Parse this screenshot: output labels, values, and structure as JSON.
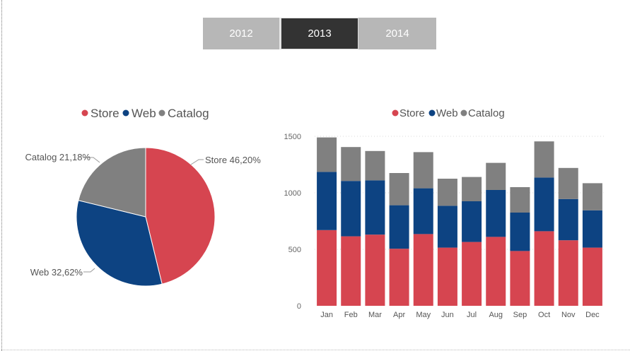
{
  "slicer": {
    "years": [
      "2012",
      "2013",
      "2014"
    ],
    "selected": "2013"
  },
  "legend": {
    "items": [
      {
        "label": "Store",
        "color": "#d64550"
      },
      {
        "label": "Web",
        "color": "#0d4382"
      },
      {
        "label": "Catalog",
        "color": "#808080"
      }
    ]
  },
  "chart_data": [
    {
      "type": "pie",
      "slices": [
        {
          "name": "Store",
          "value": 46.2,
          "label": "Store 46,20%",
          "color": "#d64550"
        },
        {
          "name": "Web",
          "value": 32.62,
          "label": "Web 32,62%",
          "color": "#0d4382"
        },
        {
          "name": "Catalog",
          "value": 21.18,
          "label": "Catalog 21,18%",
          "color": "#808080"
        }
      ]
    },
    {
      "type": "bar",
      "stacked": true,
      "categories": [
        "Jan",
        "Feb",
        "Mar",
        "Apr",
        "May",
        "Jun",
        "Jul",
        "Aug",
        "Sep",
        "Oct",
        "Nov",
        "Dec"
      ],
      "series": [
        {
          "name": "Store",
          "color": "#d64550",
          "values": [
            670,
            615,
            630,
            505,
            635,
            515,
            565,
            610,
            485,
            660,
            580,
            515
          ]
        },
        {
          "name": "Web",
          "color": "#0d4382",
          "values": [
            515,
            490,
            480,
            385,
            405,
            370,
            360,
            415,
            340,
            475,
            365,
            330
          ]
        },
        {
          "name": "Catalog",
          "color": "#808080",
          "values": [
            305,
            300,
            260,
            285,
            320,
            240,
            215,
            240,
            225,
            320,
            275,
            240
          ]
        }
      ],
      "ylim": [
        0,
        1500
      ],
      "yticks": [
        0,
        500,
        1000,
        1500
      ],
      "grid": true,
      "legend": "top"
    }
  ]
}
